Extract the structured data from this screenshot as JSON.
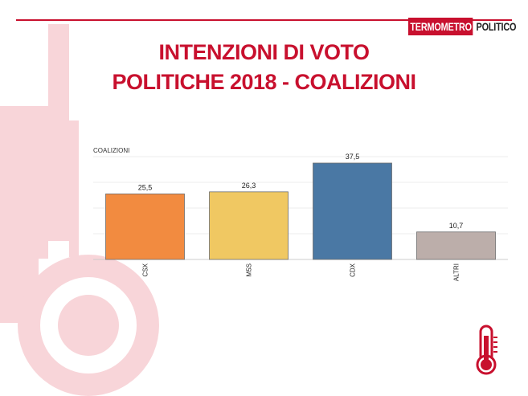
{
  "brand": {
    "part_a": "TERMOMETRO",
    "part_b": "POLITICO",
    "accent": "#c8102e"
  },
  "title": {
    "line1": "INTENZIONI DI VOTO",
    "line2": "POLITICHE 2018 - COALIZIONI"
  },
  "chart_data": {
    "type": "bar",
    "ylabel": "COALIZIONI",
    "categories": [
      "CSX",
      "M5S",
      "CDX",
      "ALTRI"
    ],
    "values": [
      25.5,
      26.3,
      37.5,
      10.7
    ],
    "value_labels": [
      "25,5",
      "26,3",
      "37,5",
      "10,7"
    ],
    "colors": [
      "#f28b40",
      "#f0c862",
      "#4a78a4",
      "#bcaeaa"
    ],
    "ylim": [
      0,
      40
    ],
    "grid": true,
    "legend": "none"
  },
  "icons": {
    "decor": "thermometer-icon"
  }
}
